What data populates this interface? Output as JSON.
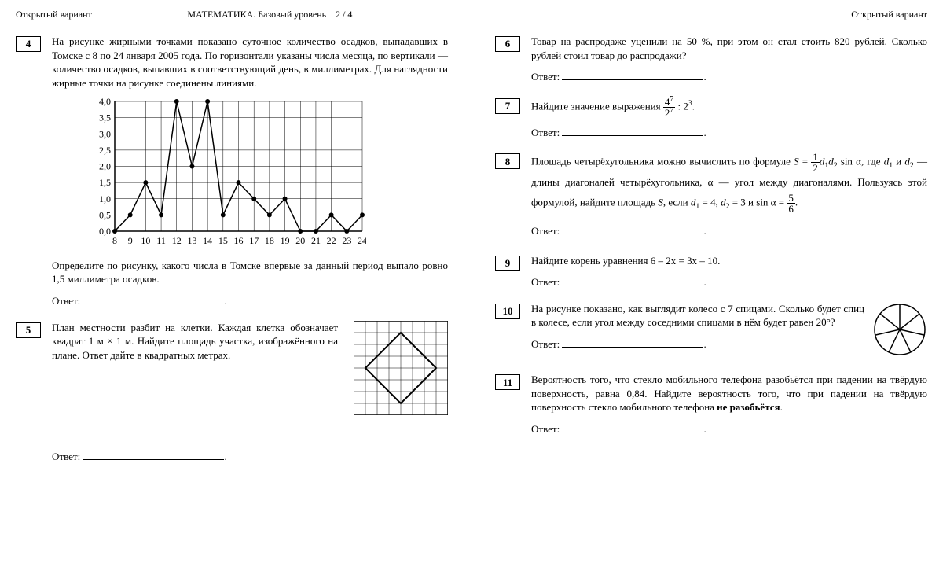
{
  "header": {
    "left": "Открытый вариант",
    "center": "МАТЕМАТИКА. Базовый уровень",
    "page": "2 / 4",
    "right": "Открытый вариант"
  },
  "answer_label": "Ответ:",
  "q4": {
    "num": "4",
    "text1": "На рисунке жирными точками показано суточное количество осадков, выпадавших в Томске с 8 по 24 января 2005 года. По горизонтали указаны числа месяца, по вертикали — количество осадков, выпавших в соответствующий день, в миллиметрах. Для наглядности жирные точки на рисунке соединены линиями.",
    "text2": "Определите по рисунку, какого числа в Томске впервые за данный период выпало ровно 1,5 миллиметра осадков.",
    "chart": {
      "y_labels": [
        "4,0",
        "3,5",
        "3,0",
        "2,5",
        "2,0",
        "1,5",
        "1,0",
        "0,5",
        "0,0"
      ],
      "x_labels": [
        "8",
        "9",
        "10",
        "11",
        "12",
        "13",
        "14",
        "15",
        "16",
        "17",
        "18",
        "19",
        "20",
        "21",
        "22",
        "23",
        "24"
      ],
      "values": [
        0,
        0.5,
        1.5,
        0.5,
        4.0,
        2.0,
        4.0,
        0.5,
        1.5,
        1.0,
        0.5,
        1.0,
        0,
        0,
        0.5,
        0,
        0.5
      ],
      "grid_color": "#000000",
      "line_color": "#000000",
      "point_color": "#000000"
    }
  },
  "q5": {
    "num": "5",
    "text": "План местности разбит на клетки. Каждая клетка обозначает квадрат 1 м × 1 м. Найдите площадь участка, изображённого на плане. Ответ дайте в квадратных метрах.",
    "grid": {
      "size": 8,
      "poly": [
        [
          1,
          4
        ],
        [
          4,
          1
        ],
        [
          7,
          4
        ],
        [
          4,
          7
        ]
      ]
    }
  },
  "q6": {
    "num": "6",
    "text": "Товар на распродаже уценили на 50 %, при этом он стал стоить 820 рублей. Сколько рублей стоил товар до распродажи?"
  },
  "q7": {
    "num": "7",
    "text_lead": "Найдите значение выражения ",
    "frac_n": "4",
    "frac_n_exp": "7",
    "frac_d": "2",
    "frac_d_exp": "7",
    "sep": " : 2",
    "tail_exp": "3",
    "tail_dot": "."
  },
  "q8": {
    "num": "8",
    "p1a": "Площадь четырёхугольника можно вычислить по формуле ",
    "formula_S": "S",
    "eq": " = ",
    "half_n": "1",
    "half_d": "2",
    "d1": "d",
    "s1": "1",
    "d2": "d",
    "s2": "2",
    "sina": " sin α,",
    "p1b": "где ",
    "p1c": " и ",
    "p1d": " — длины диагоналей четырёхугольника, α — угол между диагоналями. Пользуясь этой формулой, найдите площадь ",
    "p1e": ", если ",
    "v1": " = 4,",
    "v2": " = 3 и sin α = ",
    "f56n": "5",
    "f56d": "6",
    "dot": "."
  },
  "q9": {
    "num": "9",
    "text_lead": "Найдите корень уравнения ",
    "eqn": "6 – 2x = 3x – 10."
  },
  "q10": {
    "num": "10",
    "text": "На рисунке показано, как выглядит колесо с 7 спицами. Сколько будет спиц в колесе, если угол между соседними спицами в нём будет равен 20°?",
    "spokes": 7
  },
  "q11": {
    "num": "11",
    "t1": "Вероятность того, что стекло мобильного телефона разобьётся при падении на твёрдую поверхность, равна 0,84. Найдите вероятность того, что при падении на твёрдую поверхность стекло мобильного телефона ",
    "bold": "не разобьётся",
    "t2": "."
  }
}
